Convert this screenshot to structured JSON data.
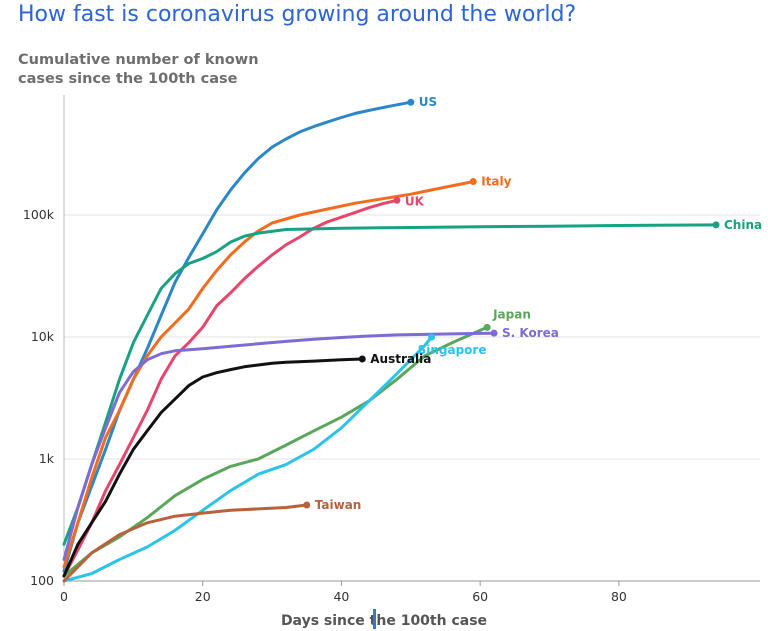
{
  "title": "How fast is coronavirus growing around the world?",
  "subtitle": "Cumulative number of known cases since the 100th case",
  "chart_data": {
    "type": "line",
    "title": "How fast is coronavirus growing around the world?",
    "subtitle": "Cumulative number of known cases since the 100th case",
    "xlabel": "Days since the 100th case",
    "ylabel": "",
    "yscale": "log",
    "xlim": [
      0,
      94
    ],
    "ylim": [
      100,
      1000000
    ],
    "xticks": [
      0,
      20,
      40,
      60,
      80
    ],
    "yticks": [
      {
        "value": 100,
        "label": "100"
      },
      {
        "value": 1000,
        "label": "1k"
      },
      {
        "value": 10000,
        "label": "10k"
      },
      {
        "value": 100000,
        "label": "100k"
      }
    ],
    "grid": "horizontal",
    "legend": "direct labels at line ends",
    "series": [
      {
        "name": "US",
        "color": "#2a87c8",
        "x": [
          0,
          2,
          4,
          6,
          8,
          10,
          12,
          14,
          16,
          18,
          20,
          22,
          24,
          26,
          28,
          30,
          32,
          34,
          36,
          38,
          40,
          42,
          44,
          46,
          48,
          50
        ],
        "y": [
          120,
          300,
          600,
          1200,
          2500,
          4500,
          8000,
          15000,
          28000,
          45000,
          70000,
          110000,
          160000,
          220000,
          290000,
          360000,
          420000,
          480000,
          530000,
          580000,
          630000,
          680000,
          720000,
          760000,
          800000,
          840000
        ]
      },
      {
        "name": "Italy",
        "color": "#f26c1d",
        "x": [
          0,
          2,
          4,
          6,
          8,
          10,
          12,
          14,
          16,
          18,
          20,
          22,
          24,
          26,
          28,
          30,
          34,
          38,
          42,
          46,
          50,
          54,
          58,
          59
        ],
        "y": [
          130,
          300,
          700,
          1500,
          2500,
          4500,
          7000,
          10000,
          13000,
          17000,
          25000,
          35000,
          47000,
          60000,
          74000,
          86000,
          100000,
          112000,
          125000,
          136000,
          148000,
          165000,
          183000,
          188000
        ]
      },
      {
        "name": "UK",
        "color": "#e6466c",
        "x": [
          0,
          2,
          4,
          6,
          8,
          10,
          12,
          14,
          16,
          18,
          20,
          22,
          24,
          26,
          28,
          30,
          32,
          34,
          36,
          38,
          40,
          42,
          44,
          46,
          48
        ],
        "y": [
          110,
          180,
          300,
          550,
          900,
          1500,
          2500,
          4500,
          7000,
          9000,
          12000,
          18000,
          23000,
          30000,
          38000,
          47000,
          57000,
          66000,
          78000,
          88000,
          96000,
          105000,
          115000,
          124000,
          132000
        ]
      },
      {
        "name": "China",
        "color": "#17a281",
        "x": [
          0,
          2,
          4,
          6,
          8,
          10,
          12,
          14,
          16,
          18,
          20,
          22,
          24,
          26,
          28,
          32,
          40,
          50,
          60,
          70,
          80,
          94
        ],
        "y": [
          200,
          400,
          900,
          2000,
          4500,
          9000,
          15000,
          25000,
          33000,
          40000,
          44000,
          50000,
          60000,
          67000,
          71000,
          76000,
          78000,
          79000,
          80000,
          81000,
          82000,
          83000
        ]
      },
      {
        "name": "Japan",
        "color": "#5aa65a",
        "x": [
          0,
          4,
          8,
          12,
          16,
          20,
          24,
          28,
          32,
          36,
          40,
          44,
          48,
          52,
          56,
          61
        ],
        "y": [
          110,
          170,
          230,
          330,
          500,
          680,
          870,
          1000,
          1300,
          1700,
          2200,
          3000,
          4500,
          7000,
          9000,
          12000
        ]
      },
      {
        "name": "S. Korea",
        "color": "#7e6bd3",
        "x": [
          0,
          2,
          4,
          6,
          8,
          10,
          12,
          14,
          16,
          20,
          24,
          28,
          32,
          36,
          40,
          44,
          48,
          52,
          56,
          60,
          62
        ],
        "y": [
          150,
          400,
          900,
          1800,
          3500,
          5200,
          6500,
          7300,
          7700,
          8000,
          8400,
          8800,
          9200,
          9600,
          9900,
          10200,
          10400,
          10500,
          10600,
          10700,
          10750
        ]
      },
      {
        "name": "Singapore",
        "color": "#2cc3ea",
        "x": [
          0,
          4,
          8,
          12,
          16,
          20,
          24,
          28,
          32,
          36,
          40,
          44,
          48,
          52,
          53
        ],
        "y": [
          100,
          115,
          150,
          190,
          260,
          380,
          550,
          750,
          900,
          1200,
          1800,
          3000,
          5000,
          8500,
          10000
        ]
      },
      {
        "name": "Australia",
        "color": "#111111",
        "x": [
          0,
          2,
          4,
          6,
          8,
          10,
          12,
          14,
          16,
          18,
          20,
          22,
          24,
          26,
          28,
          30,
          32,
          36,
          40,
          43
        ],
        "y": [
          110,
          200,
          300,
          450,
          750,
          1200,
          1700,
          2400,
          3100,
          4000,
          4700,
          5100,
          5400,
          5700,
          5900,
          6100,
          6200,
          6350,
          6500,
          6600
        ]
      },
      {
        "name": "Taiwan",
        "color": "#b8613b",
        "x": [
          0,
          4,
          8,
          12,
          16,
          20,
          24,
          28,
          32,
          35
        ],
        "y": [
          100,
          170,
          240,
          300,
          340,
          360,
          380,
          390,
          400,
          420
        ]
      }
    ]
  }
}
